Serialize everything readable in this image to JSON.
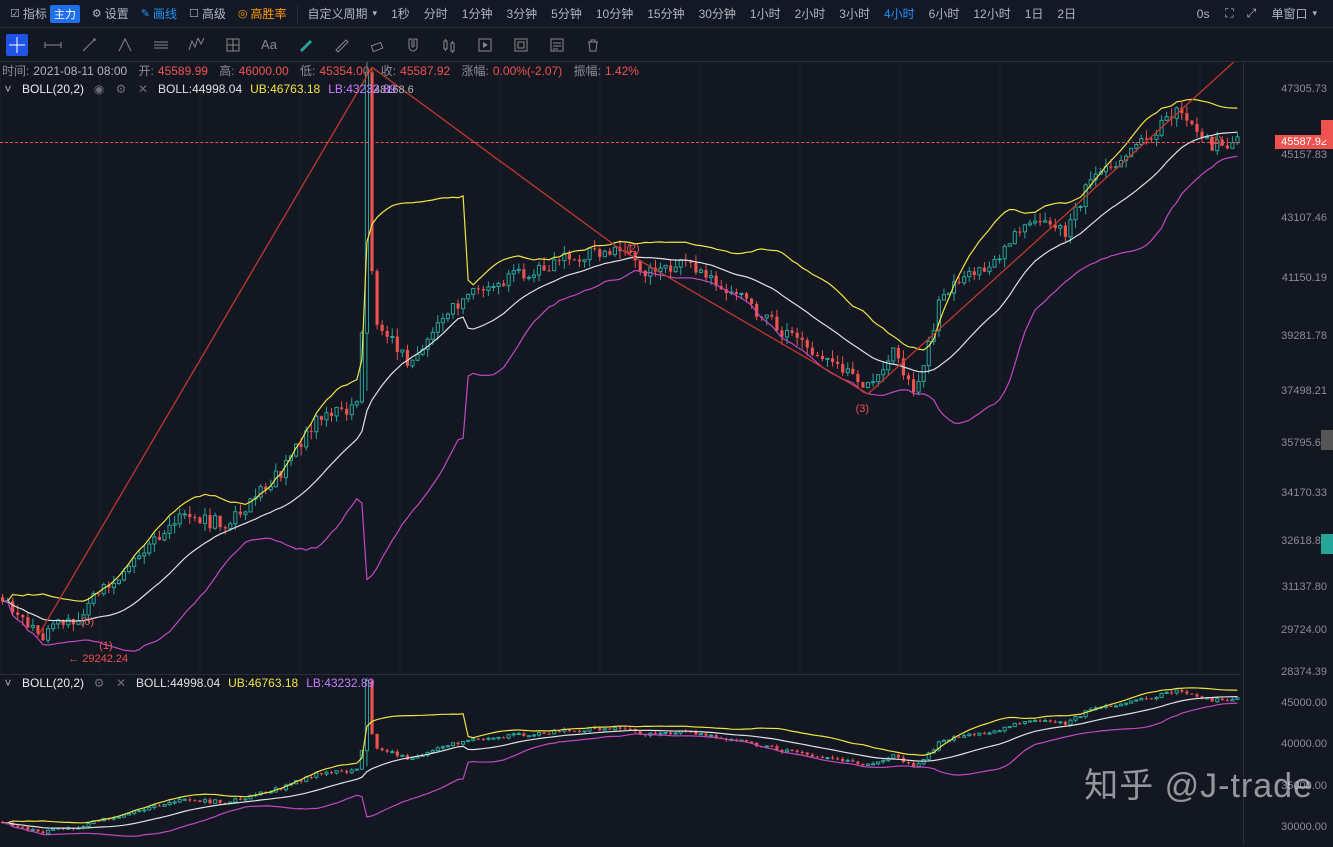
{
  "topbar": {
    "indicator_label": "指标",
    "main_badge": "主力",
    "settings": "设置",
    "kline": "画线",
    "advanced": "高级",
    "winrate": "高胜率",
    "custom_period": "自定义周期",
    "timeframes": [
      "1秒",
      "分时",
      "1分钟",
      "3分钟",
      "5分钟",
      "10分钟",
      "15分钟",
      "30分钟",
      "1小时",
      "2小时",
      "3小时",
      "4小时",
      "6小时",
      "12小时",
      "1日",
      "2日"
    ],
    "active_tf": "4小时",
    "countdown": "0s",
    "window_mode": "单窗口"
  },
  "ohlc": {
    "time_lbl": "时间:",
    "time": "2021-08-11 08:00",
    "open_lbl": "开:",
    "open": "45589.99",
    "high_lbl": "高:",
    "high": "46000.00",
    "low_lbl": "低:",
    "low": "45354.00",
    "close_lbl": "收:",
    "close": "45587.92",
    "chg_lbl": "涨幅:",
    "chg": "0.00%(-2.07)",
    "amp_lbl": "振幅:",
    "amp": "1.42%"
  },
  "indicator_main": {
    "name": "BOLL(20,2)",
    "boll": "BOLL:44998.04",
    "ub": "UB:46763.18",
    "lb": "LB:43232.89",
    "high_label": "48168.6"
  },
  "indicator_sub": {
    "name": "BOLL(20,2)",
    "boll": "BOLL:44998.04",
    "ub": "UB:46763.18",
    "lb": "LB:43232.89"
  },
  "yaxis_main": {
    "min": 28374,
    "max": 48169,
    "ticks": [
      47305.73,
      45157.83,
      43107.46,
      41150.19,
      39281.78,
      37498.21,
      35795.62,
      34170.33,
      32618.84,
      31137.8,
      29724.0,
      28374.39
    ],
    "last_price": 45587.92
  },
  "yaxis_sub": {
    "ticks": [
      45000.0,
      40000.0,
      35000.0,
      30000.0
    ]
  },
  "annotations": {
    "low_label": "29242.24",
    "w0": "(0)",
    "w1": "(1)",
    "w2": "(2)",
    "w3": "(3)",
    "wtop": "(1)"
  },
  "colors": {
    "bg": "#131722",
    "grid": "#1c2030",
    "candle_up": "#26a69a",
    "candle_down": "#ef5350",
    "boll_mid": "#e0e0e0",
    "boll_up": "#f0e442",
    "boll_low": "#c049c0",
    "trend": "#c0392b"
  },
  "watermark": "知乎 @J-trade",
  "chart": {
    "n": 245,
    "main_height": 610,
    "sub_height": 170,
    "seed": 20210811
  }
}
